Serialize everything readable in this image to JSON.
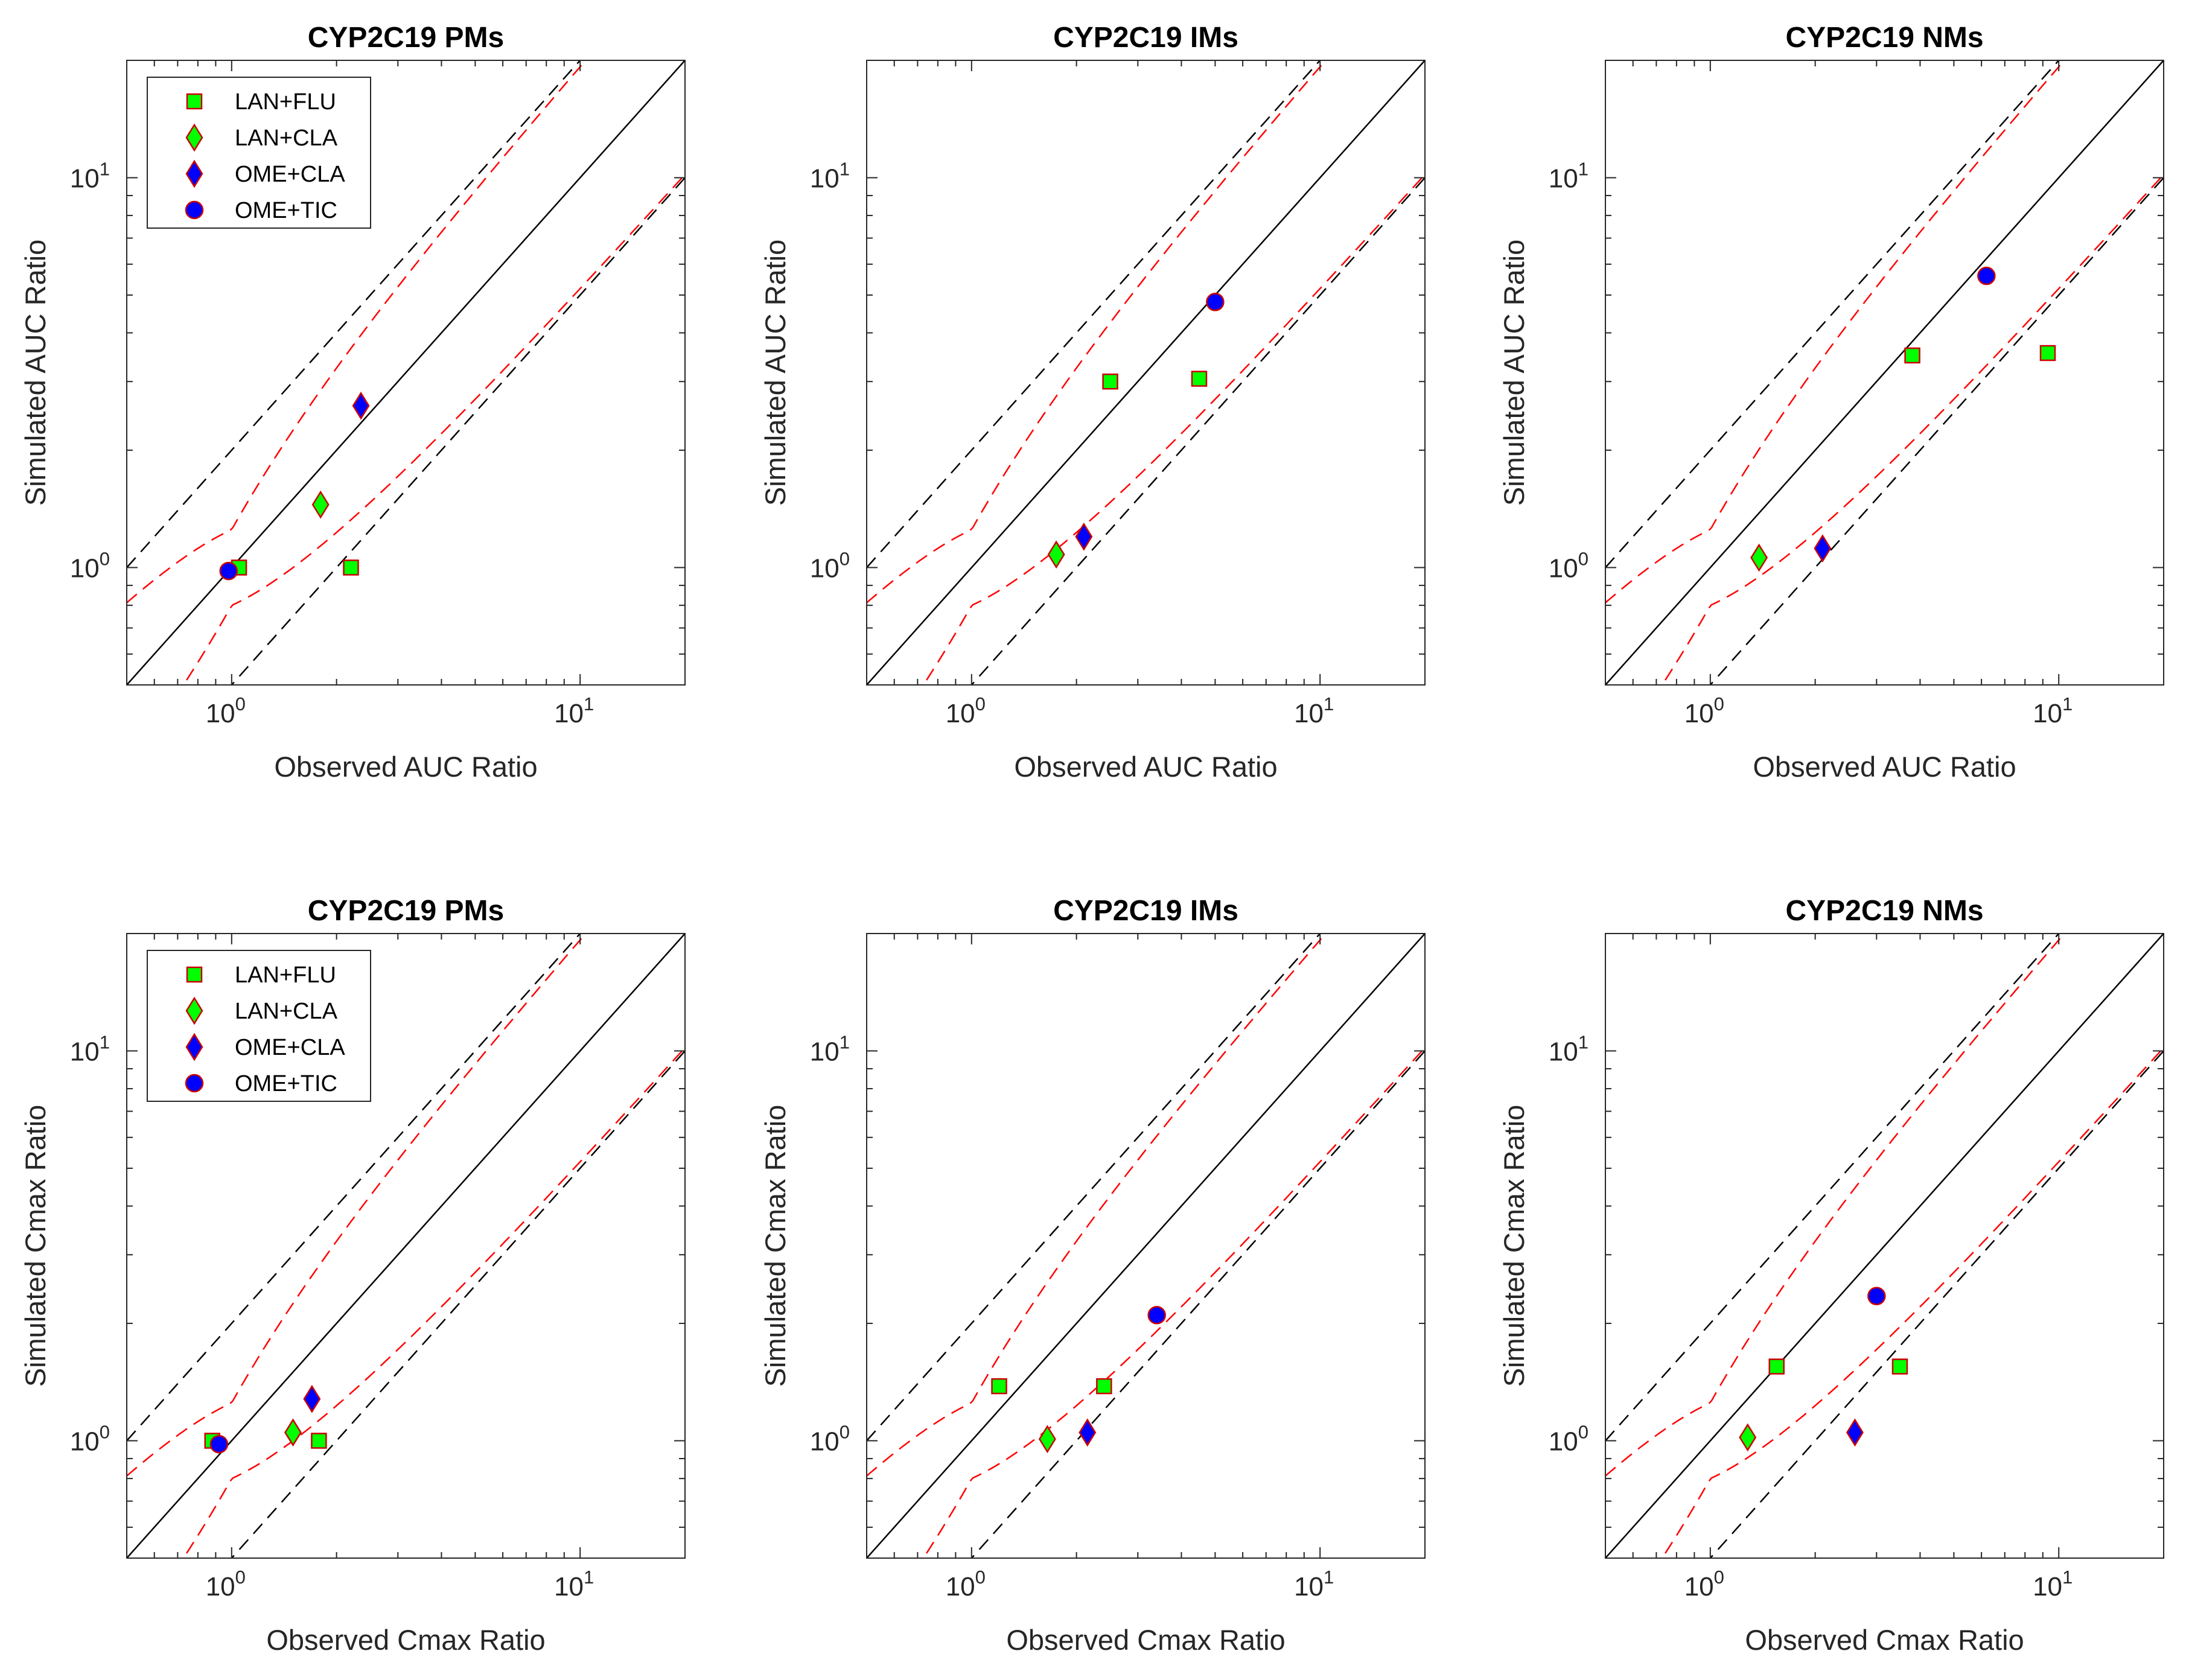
{
  "figure": {
    "rows": 2,
    "cols": 3,
    "legend_entries": [
      {
        "label": "LAN+FLU",
        "marker": "square",
        "fill": "#00ff00",
        "edge": "#cc0000"
      },
      {
        "label": "LAN+CLA",
        "marker": "diamond",
        "fill": "#00ff00",
        "edge": "#cc0000"
      },
      {
        "label": "OME+CLA",
        "marker": "diamond",
        "fill": "#0000ff",
        "edge": "#cc0000"
      },
      {
        "label": "OME+TIC",
        "marker": "circle",
        "fill": "#0000ff",
        "edge": "#cc0000"
      }
    ],
    "colors": {
      "identity": "#000000",
      "twofold": "#000000",
      "guest": "#ff0000"
    }
  },
  "chart_data": [
    {
      "type": "scatter",
      "scale": "log",
      "title": "CYP2C19 PMs",
      "xlabel": "Observed AUC Ratio",
      "ylabel": "Simulated AUC Ratio",
      "xlim": [
        0.5,
        20
      ],
      "ylim": [
        0.5,
        20
      ],
      "legend": "top-left",
      "xticks": [
        {
          "base": "10",
          "exp": "0",
          "value": 1
        },
        {
          "base": "10",
          "exp": "1",
          "value": 10
        }
      ],
      "yticks": [
        {
          "base": "10",
          "exp": "0",
          "value": 1
        },
        {
          "base": "10",
          "exp": "1",
          "value": 10
        }
      ],
      "points": [
        {
          "series": "LAN+FLU",
          "x": 1.05,
          "y": 1.0
        },
        {
          "series": "LAN+FLU",
          "x": 2.2,
          "y": 1.0
        },
        {
          "series": "LAN+CLA",
          "x": 1.8,
          "y": 1.45
        },
        {
          "series": "OME+CLA",
          "x": 2.35,
          "y": 2.6
        },
        {
          "series": "OME+TIC",
          "x": 0.98,
          "y": 0.98
        }
      ]
    },
    {
      "type": "scatter",
      "scale": "log",
      "title": "CYP2C19 IMs",
      "xlabel": "Observed AUC Ratio",
      "ylabel": "Simulated AUC Ratio",
      "xlim": [
        0.5,
        20
      ],
      "ylim": [
        0.5,
        20
      ],
      "legend": "none",
      "xticks": [
        {
          "base": "10",
          "exp": "0",
          "value": 1
        },
        {
          "base": "10",
          "exp": "1",
          "value": 10
        }
      ],
      "yticks": [
        {
          "base": "10",
          "exp": "0",
          "value": 1
        },
        {
          "base": "10",
          "exp": "1",
          "value": 10
        }
      ],
      "points": [
        {
          "series": "LAN+FLU",
          "x": 2.5,
          "y": 3.0
        },
        {
          "series": "LAN+FLU",
          "x": 4.5,
          "y": 3.05
        },
        {
          "series": "LAN+CLA",
          "x": 1.75,
          "y": 1.08
        },
        {
          "series": "OME+CLA",
          "x": 2.1,
          "y": 1.2
        },
        {
          "series": "OME+TIC",
          "x": 5.0,
          "y": 4.8
        }
      ]
    },
    {
      "type": "scatter",
      "scale": "log",
      "title": "CYP2C19 NMs",
      "xlabel": "Observed AUC Ratio",
      "ylabel": "Simulated AUC Ratio",
      "xlim": [
        0.5,
        20
      ],
      "ylim": [
        0.5,
        20
      ],
      "legend": "none",
      "xticks": [
        {
          "base": "10",
          "exp": "0",
          "value": 1
        },
        {
          "base": "10",
          "exp": "1",
          "value": 10
        }
      ],
      "yticks": [
        {
          "base": "10",
          "exp": "0",
          "value": 1
        },
        {
          "base": "10",
          "exp": "1",
          "value": 10
        }
      ],
      "points": [
        {
          "series": "LAN+FLU",
          "x": 3.8,
          "y": 3.5
        },
        {
          "series": "LAN+FLU",
          "x": 9.3,
          "y": 3.55
        },
        {
          "series": "LAN+CLA",
          "x": 1.38,
          "y": 1.06
        },
        {
          "series": "OME+CLA",
          "x": 2.1,
          "y": 1.12
        },
        {
          "series": "OME+TIC",
          "x": 6.2,
          "y": 5.6
        }
      ]
    },
    {
      "type": "scatter",
      "scale": "log",
      "title": "CYP2C19 PMs",
      "xlabel": "Observed Cmax Ratio",
      "ylabel": "Simulated Cmax Ratio",
      "xlim": [
        0.5,
        20
      ],
      "ylim": [
        0.5,
        20
      ],
      "legend": "top-left",
      "xticks": [
        {
          "base": "10",
          "exp": "0",
          "value": 1
        },
        {
          "base": "10",
          "exp": "1",
          "value": 10
        }
      ],
      "yticks": [
        {
          "base": "10",
          "exp": "0",
          "value": 1
        },
        {
          "base": "10",
          "exp": "1",
          "value": 10
        }
      ],
      "points": [
        {
          "series": "LAN+FLU",
          "x": 0.88,
          "y": 1.0
        },
        {
          "series": "LAN+FLU",
          "x": 1.78,
          "y": 1.0
        },
        {
          "series": "LAN+CLA",
          "x": 1.5,
          "y": 1.05
        },
        {
          "series": "OME+CLA",
          "x": 1.7,
          "y": 1.28
        },
        {
          "series": "OME+TIC",
          "x": 0.92,
          "y": 0.98
        }
      ]
    },
    {
      "type": "scatter",
      "scale": "log",
      "title": "CYP2C19 IMs",
      "xlabel": "Observed Cmax Ratio",
      "ylabel": "Simulated Cmax Ratio",
      "xlim": [
        0.5,
        20
      ],
      "ylim": [
        0.5,
        20
      ],
      "legend": "none",
      "xticks": [
        {
          "base": "10",
          "exp": "0",
          "value": 1
        },
        {
          "base": "10",
          "exp": "1",
          "value": 10
        }
      ],
      "yticks": [
        {
          "base": "10",
          "exp": "0",
          "value": 1
        },
        {
          "base": "10",
          "exp": "1",
          "value": 10
        }
      ],
      "points": [
        {
          "series": "LAN+FLU",
          "x": 1.2,
          "y": 1.38
        },
        {
          "series": "LAN+FLU",
          "x": 2.4,
          "y": 1.38
        },
        {
          "series": "LAN+CLA",
          "x": 1.65,
          "y": 1.01
        },
        {
          "series": "OME+CLA",
          "x": 2.15,
          "y": 1.05
        },
        {
          "series": "OME+TIC",
          "x": 3.4,
          "y": 2.1
        }
      ]
    },
    {
      "type": "scatter",
      "scale": "log",
      "title": "CYP2C19 NMs",
      "xlabel": "Observed Cmax Ratio",
      "ylabel": "Simulated Cmax Ratio",
      "xlim": [
        0.5,
        20
      ],
      "ylim": [
        0.5,
        20
      ],
      "legend": "none",
      "xticks": [
        {
          "base": "10",
          "exp": "0",
          "value": 1
        },
        {
          "base": "10",
          "exp": "1",
          "value": 10
        }
      ],
      "yticks": [
        {
          "base": "10",
          "exp": "0",
          "value": 1
        },
        {
          "base": "10",
          "exp": "1",
          "value": 10
        }
      ],
      "points": [
        {
          "series": "LAN+FLU",
          "x": 1.55,
          "y": 1.55
        },
        {
          "series": "LAN+FLU",
          "x": 3.5,
          "y": 1.55
        },
        {
          "series": "LAN+CLA",
          "x": 1.28,
          "y": 1.02
        },
        {
          "series": "OME+CLA",
          "x": 2.6,
          "y": 1.05
        },
        {
          "series": "OME+TIC",
          "x": 3.0,
          "y": 2.35
        }
      ]
    }
  ]
}
